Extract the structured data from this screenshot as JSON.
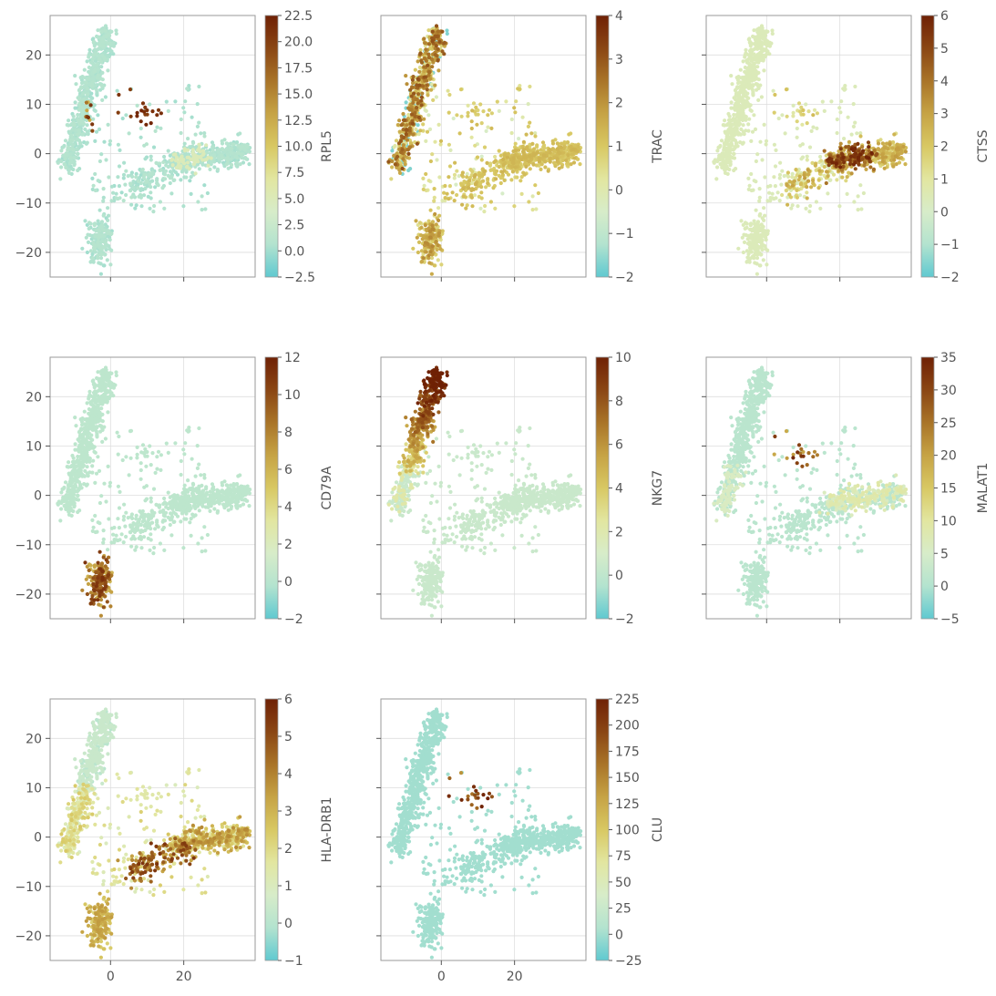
{
  "figure": {
    "background": "#ffffff",
    "grid": true
  },
  "colormap": [
    "#5fc9d0",
    "#b3e3cf",
    "#d7ecc9",
    "#e2e6a0",
    "#d8c863",
    "#c6a345",
    "#a97428",
    "#8a4614",
    "#6f2105"
  ],
  "shared_x": {
    "ticks": [
      0,
      20
    ],
    "range": [
      -16.5,
      39.5
    ]
  },
  "shared_y": {
    "ticks": [
      20,
      10,
      0,
      -10,
      -20
    ],
    "range": [
      -25,
      28
    ]
  },
  "chart_data": [
    {
      "type": "scatter",
      "gene": "RPL5",
      "ylabel": "RPL5",
      "pattern": "RPL5",
      "xlim": [
        -16.5,
        39.5
      ],
      "ylim": [
        -25,
        28
      ],
      "grid": true,
      "colorbar": {
        "range": [
          -2.5,
          22.5
        ],
        "ticks": [
          "22.5",
          "20.0",
          "17.5",
          "15.0",
          "12.5",
          "10.0",
          "7.5",
          "5.0",
          "2.5",
          "0.0",
          "-2.5"
        ]
      }
    },
    {
      "type": "scatter",
      "gene": "TRAC",
      "ylabel": "TRAC",
      "pattern": "TRAC",
      "xlim": [
        -16.5,
        39.5
      ],
      "ylim": [
        -25,
        28
      ],
      "grid": true,
      "colorbar": {
        "range": [
          -2,
          4
        ],
        "ticks": [
          "4",
          "3",
          "2",
          "1",
          "0",
          "-1",
          "-2"
        ]
      }
    },
    {
      "type": "scatter",
      "gene": "CTSS",
      "ylabel": "CTSS",
      "pattern": "CTSS",
      "xlim": [
        -16.5,
        39.5
      ],
      "ylim": [
        -25,
        28
      ],
      "grid": true,
      "colorbar": {
        "range": [
          -2,
          6
        ],
        "ticks": [
          "6",
          "5",
          "4",
          "3",
          "2",
          "1",
          "0",
          "-1",
          "-2"
        ]
      }
    },
    {
      "type": "scatter",
      "gene": "CD79A",
      "ylabel": "CD79A",
      "pattern": "CD79A",
      "xlim": [
        -16.5,
        39.5
      ],
      "ylim": [
        -25,
        28
      ],
      "grid": true,
      "colorbar": {
        "range": [
          -2,
          12
        ],
        "ticks": [
          "12",
          "10",
          "8",
          "6",
          "4",
          "2",
          "0",
          "-2"
        ]
      }
    },
    {
      "type": "scatter",
      "gene": "NKG7",
      "ylabel": "NKG7",
      "pattern": "NKG7",
      "xlim": [
        -16.5,
        39.5
      ],
      "ylim": [
        -25,
        28
      ],
      "grid": true,
      "colorbar": {
        "range": [
          -2,
          10
        ],
        "ticks": [
          "10",
          "8",
          "6",
          "4",
          "2",
          "0",
          "-2"
        ]
      }
    },
    {
      "type": "scatter",
      "gene": "MALAT1",
      "ylabel": "MALAT1",
      "pattern": "MALAT1",
      "xlim": [
        -16.5,
        39.5
      ],
      "ylim": [
        -25,
        28
      ],
      "grid": true,
      "colorbar": {
        "range": [
          -5,
          35
        ],
        "ticks": [
          "35",
          "30",
          "25",
          "20",
          "15",
          "10",
          "5",
          "0",
          "-5"
        ]
      }
    },
    {
      "type": "scatter",
      "gene": "HLA-DRB1",
      "ylabel": "HLA-DRB1",
      "pattern": "HLA-DRB1",
      "xlim": [
        -16.5,
        39.5
      ],
      "ylim": [
        -25,
        28
      ],
      "grid": true,
      "colorbar": {
        "range": [
          -1,
          6
        ],
        "ticks": [
          "6",
          "5",
          "4",
          "3",
          "2",
          "1",
          "0",
          "-1"
        ]
      }
    },
    {
      "type": "scatter",
      "gene": "CLU",
      "ylabel": "CLU",
      "pattern": "CLU",
      "xlim": [
        -16.5,
        39.5
      ],
      "ylim": [
        -25,
        28
      ],
      "grid": true,
      "colorbar": {
        "range": [
          -25,
          225
        ],
        "ticks": [
          "225",
          "200",
          "175",
          "150",
          "125",
          "100",
          "75",
          "50",
          "25",
          "0",
          "-25"
        ]
      }
    }
  ]
}
